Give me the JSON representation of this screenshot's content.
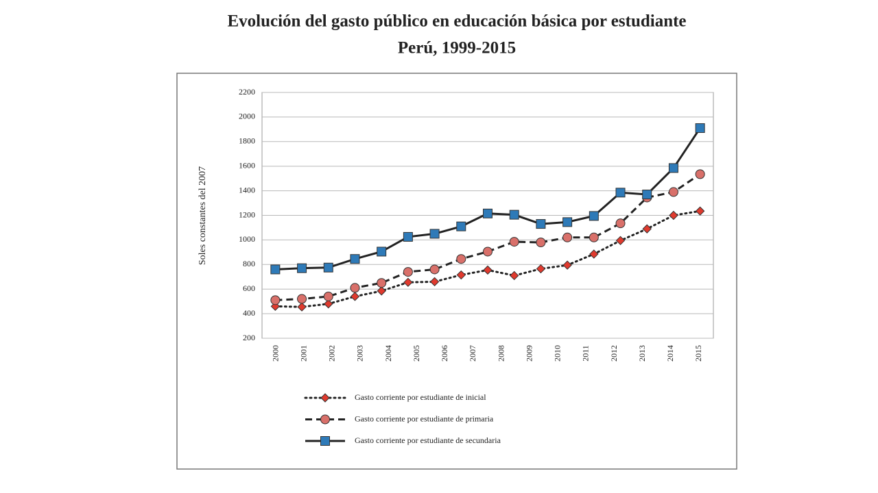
{
  "chart_data": {
    "type": "line",
    "title": "Evolución del gasto público en educación básica por estudiante",
    "subtitle": "Perú, 1999-2015",
    "y_label": "Soles constantes del 2007",
    "categories": [
      null,
      "2000",
      "2001",
      "2002",
      "2003",
      "2004",
      "2005",
      "2006",
      "2007",
      "2008",
      "2009",
      "2010",
      "2011",
      "2012",
      "2013",
      "2014",
      "2015"
    ],
    "series": [
      {
        "name": "Gasto corriente por estudiante de inicial",
        "color": "#e03a2e",
        "marker": "diamond",
        "dash": "dotted",
        "values": [
          460,
          455,
          480,
          540,
          585,
          655,
          660,
          715,
          755,
          710,
          765,
          795,
          885,
          995,
          1090,
          1200,
          1235
        ]
      },
      {
        "name": "Gasto corriente por estudiante de primaria",
        "color": "#d9706a",
        "marker": "circle",
        "dash": "dashed",
        "values": [
          510,
          520,
          540,
          610,
          650,
          740,
          760,
          845,
          905,
          985,
          980,
          1020,
          1020,
          1135,
          1345,
          1390,
          1535
        ]
      },
      {
        "name": "Gasto corriente por estudiante de secundaria",
        "color": "#2e7ab8",
        "marker": "square",
        "dash": "solid",
        "values": [
          760,
          770,
          775,
          845,
          905,
          1025,
          1050,
          1110,
          1215,
          1205,
          1130,
          1145,
          1195,
          1385,
          1370,
          1585,
          1910
        ]
      }
    ],
    "ylim": [
      200,
      2200
    ],
    "yticks": [
      200,
      400,
      600,
      800,
      1000,
      1200,
      1400,
      1600,
      1800,
      2000,
      2200
    ],
    "grid": true
  }
}
